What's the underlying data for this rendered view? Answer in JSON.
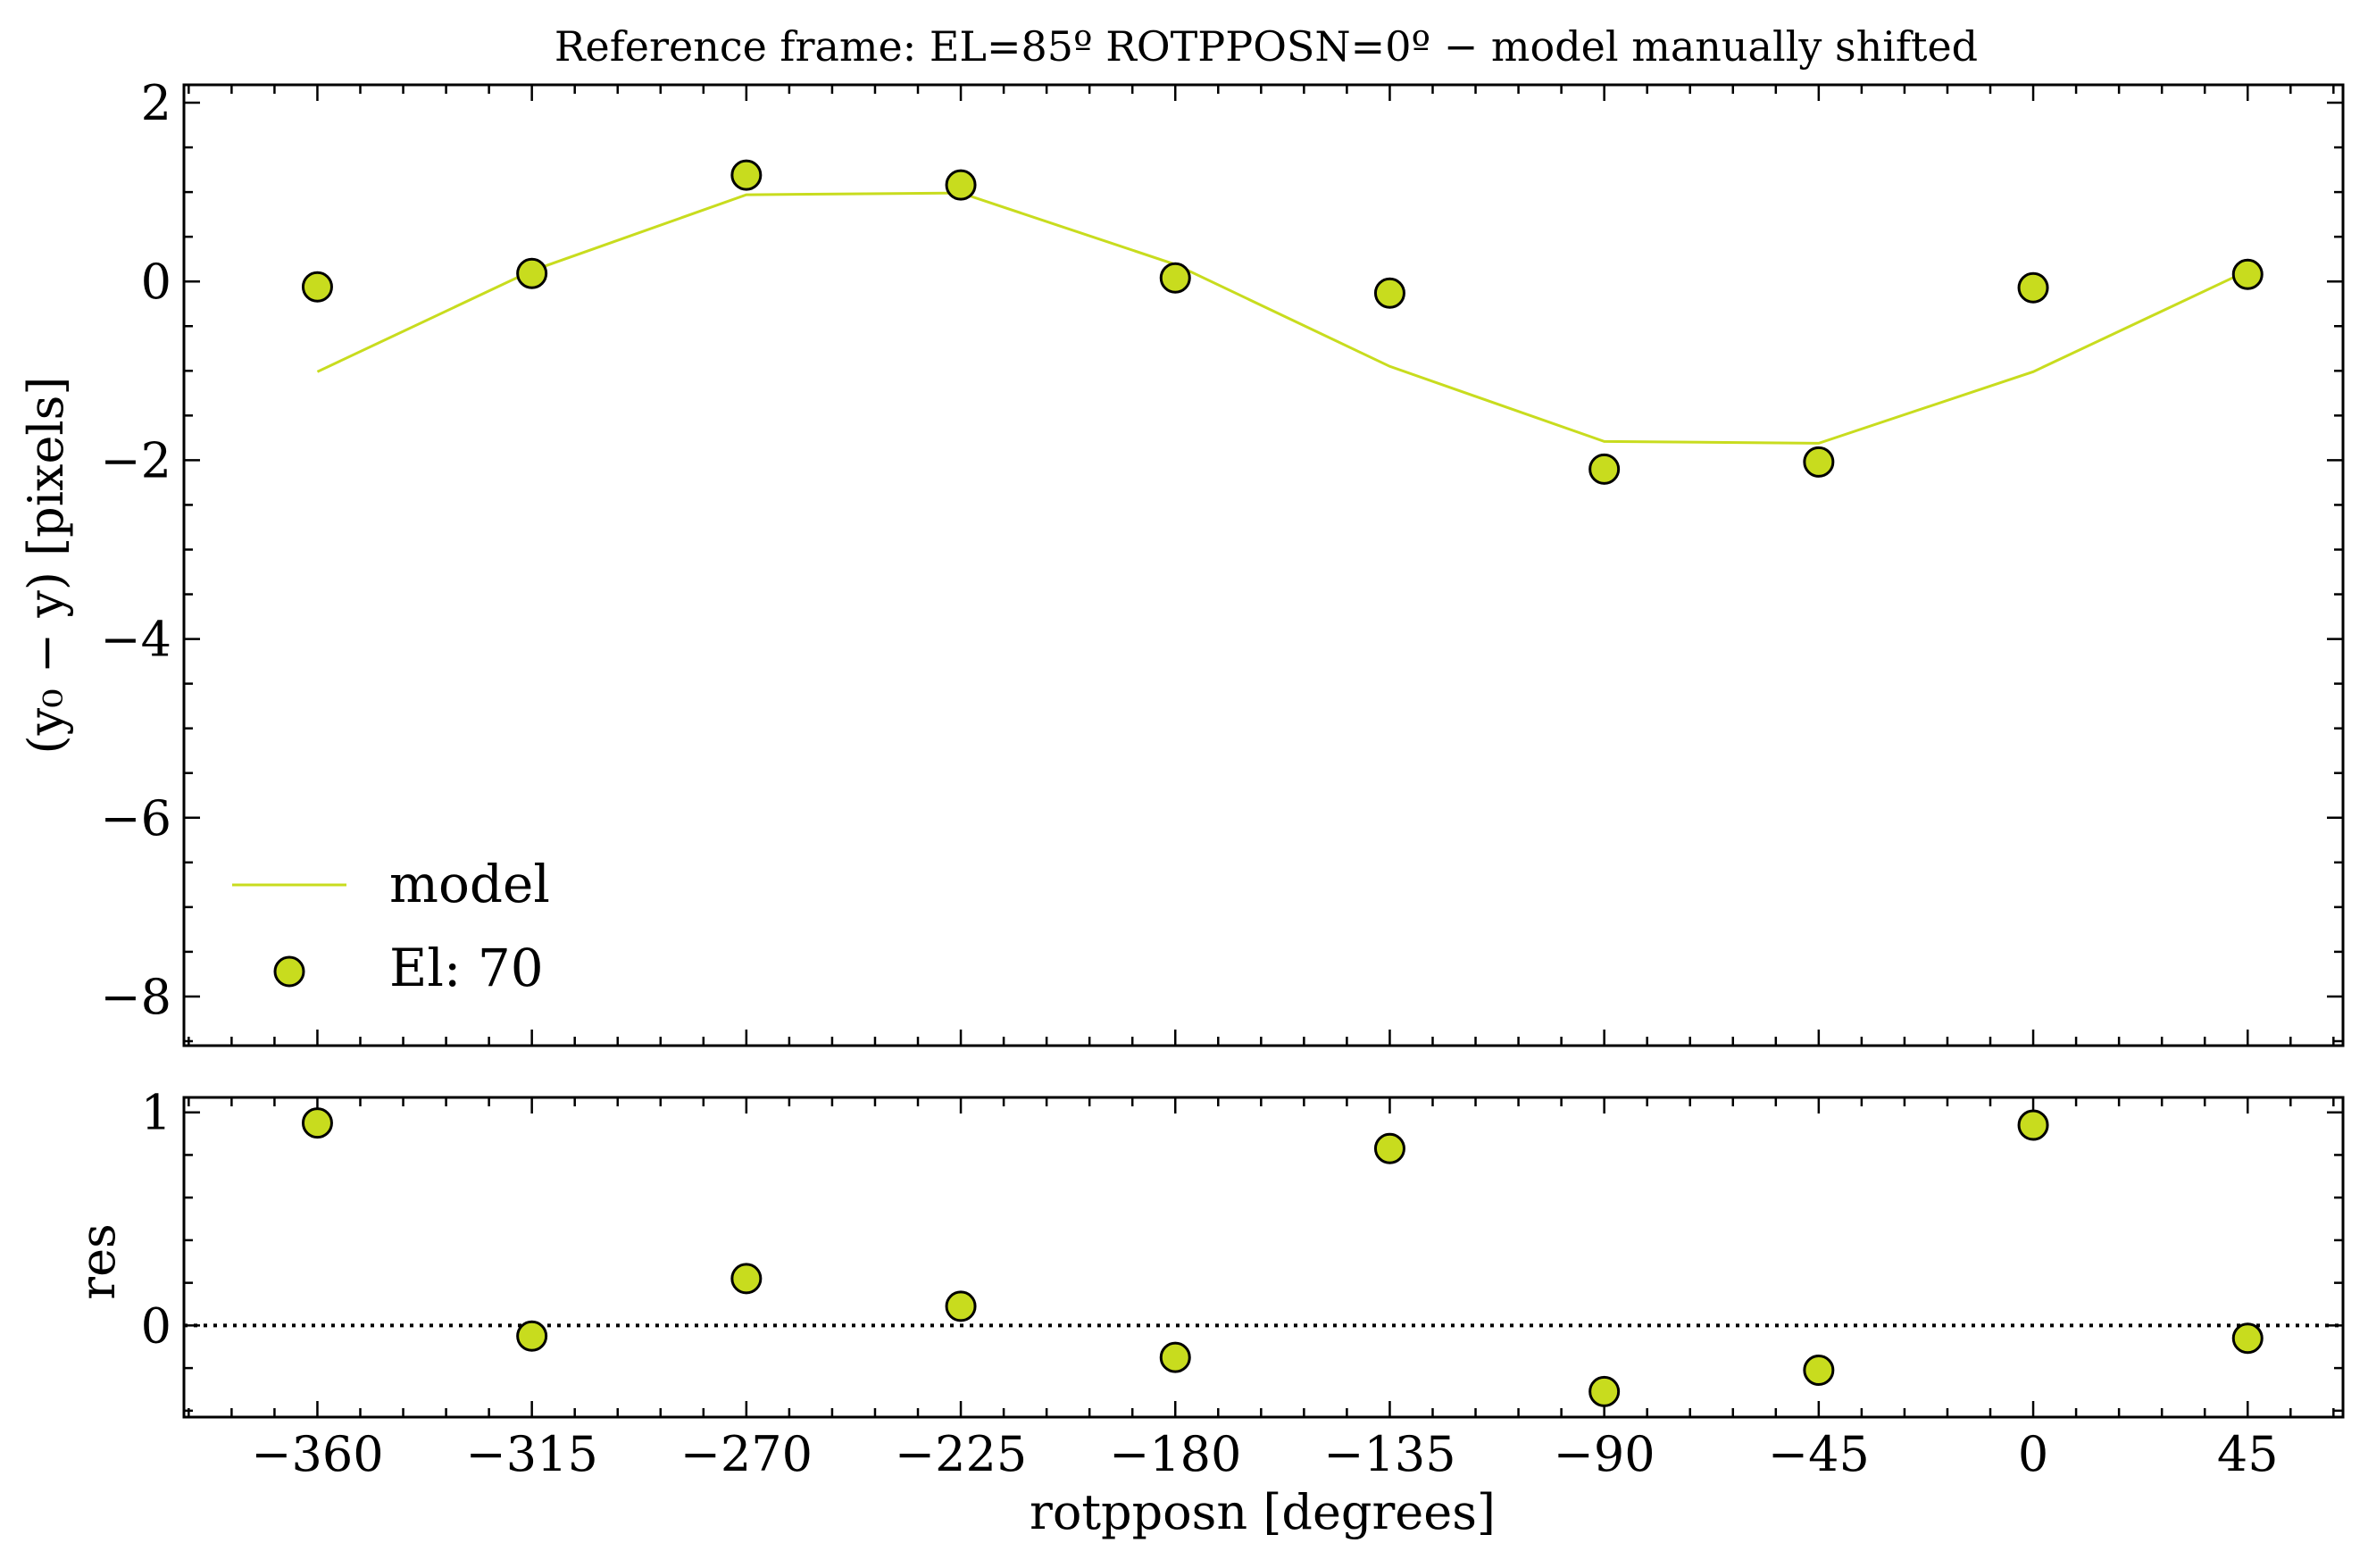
{
  "chart_data": [
    {
      "type": "scatter",
      "panel": "main",
      "title": "Reference frame: EL=85º ROTPPOSN=0º − model manually shifted",
      "xlabel": "",
      "ylabel": "(y₀ − y) [pixels]",
      "xlim": [
        -388,
        65
      ],
      "ylim": [
        -8.55,
        2.2
      ],
      "y_ticks": [
        2,
        0,
        -2,
        -4,
        -6,
        -8
      ],
      "y_tick_labels": [
        "2",
        "0",
        "−2",
        "−4",
        "−6",
        "−8"
      ],
      "x_ticks": [
        -360,
        -315,
        -270,
        -225,
        -180,
        -135,
        -90,
        -45,
        0,
        45
      ],
      "x": [
        -360,
        -315,
        -270,
        -225,
        -180,
        -135,
        -90,
        -45,
        0,
        45
      ],
      "series": [
        {
          "name": "model",
          "kind": "line",
          "color": "#c8dc1e",
          "values": [
            -1.01,
            0.12,
            0.97,
            0.99,
            0.19,
            -0.95,
            -1.79,
            -1.81,
            -1.01,
            0.12
          ]
        },
        {
          "name": "El: 70",
          "kind": "scatter",
          "color": "#c8dc1e",
          "edgecolor": "#000000",
          "values": [
            -0.06,
            0.09,
            1.19,
            1.08,
            0.04,
            -0.13,
            -2.1,
            -2.02,
            -0.07,
            0.08
          ]
        }
      ],
      "legend": {
        "placement": "lower-left",
        "entries": [
          "model",
          "El: 70"
        ]
      },
      "grid": false
    },
    {
      "type": "scatter",
      "panel": "residuals",
      "xlabel": "rotpposn [degrees]",
      "ylabel": "res",
      "xlim": [
        -388,
        65
      ],
      "ylim": [
        -0.43,
        1.07
      ],
      "y_ticks": [
        1,
        0
      ],
      "y_tick_labels": [
        "1",
        "0"
      ],
      "x_ticks": [
        -360,
        -315,
        -270,
        -225,
        -180,
        -135,
        -90,
        -45,
        0,
        45
      ],
      "x_tick_labels": [
        "−360",
        "−315",
        "−270",
        "−225",
        "−180",
        "−135",
        "−90",
        "−45",
        "0",
        "45"
      ],
      "x": [
        -360,
        -315,
        -270,
        -225,
        -180,
        -135,
        -90,
        -45,
        0,
        45
      ],
      "reference_line": {
        "y": 0,
        "style": "dotted",
        "color": "#000000"
      },
      "series": [
        {
          "name": "El: 70",
          "kind": "scatter",
          "color": "#c8dc1e",
          "edgecolor": "#000000",
          "values": [
            0.95,
            -0.05,
            0.22,
            0.09,
            -0.15,
            0.83,
            -0.31,
            -0.21,
            0.94,
            -0.06
          ]
        }
      ],
      "grid": false
    }
  ]
}
